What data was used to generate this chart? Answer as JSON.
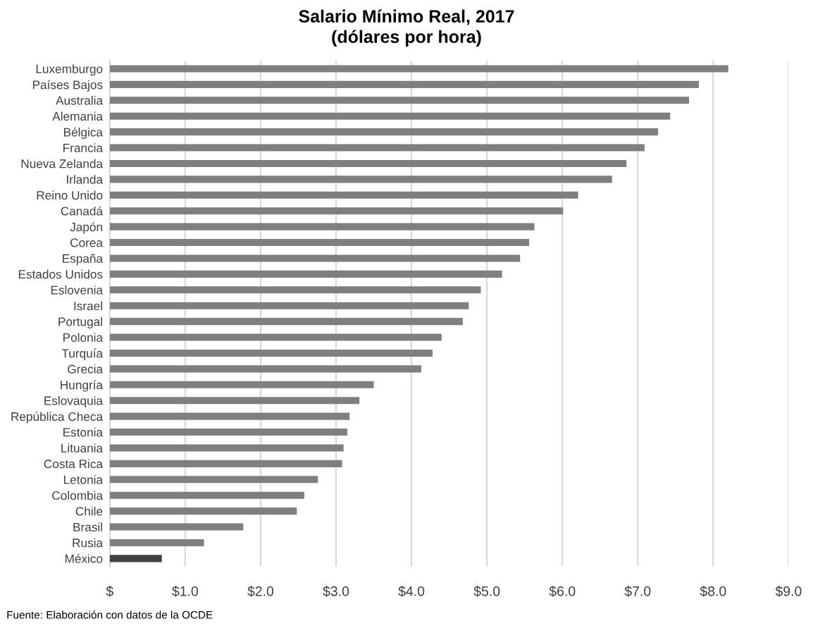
{
  "chart_data": {
    "type": "bar",
    "orientation": "horizontal",
    "title": "Salario Mínimo Real, 2017\n(dólares por hora)",
    "categories": [
      "Luxemburgo",
      "Países Bajos",
      "Australia",
      "Alemania",
      "Bélgica",
      "Francia",
      "Nueva Zelanda",
      "Irlanda",
      "Reino Unido",
      "Canadá",
      "Japón",
      "Corea",
      "España",
      "Estados Unidos",
      "Eslovenia",
      "Israel",
      "Portugal",
      "Polonia",
      "Turquía",
      "Grecia",
      "Hungría",
      "Eslovaquia",
      "República Checa",
      "Estonia",
      "Lituania",
      "Costa Rica",
      "Letonia",
      "Colombia",
      "Chile",
      "Brasil",
      "Rusia",
      "México"
    ],
    "values": [
      8.2,
      7.81,
      7.68,
      7.43,
      7.27,
      7.09,
      6.85,
      6.66,
      6.21,
      6.01,
      5.63,
      5.56,
      5.44,
      5.2,
      4.92,
      4.76,
      4.68,
      4.4,
      4.28,
      4.13,
      3.5,
      3.31,
      3.18,
      3.15,
      3.1,
      3.08,
      2.76,
      2.58,
      2.48,
      1.77,
      1.25,
      0.69
    ],
    "colors": [
      "#7f7f7f",
      "#7f7f7f",
      "#7f7f7f",
      "#7f7f7f",
      "#7f7f7f",
      "#7f7f7f",
      "#7f7f7f",
      "#7f7f7f",
      "#7f7f7f",
      "#7f7f7f",
      "#7f7f7f",
      "#7f7f7f",
      "#7f7f7f",
      "#7f7f7f",
      "#7f7f7f",
      "#7f7f7f",
      "#7f7f7f",
      "#7f7f7f",
      "#7f7f7f",
      "#7f7f7f",
      "#7f7f7f",
      "#7f7f7f",
      "#7f7f7f",
      "#7f7f7f",
      "#7f7f7f",
      "#7f7f7f",
      "#7f7f7f",
      "#7f7f7f",
      "#7f7f7f",
      "#7f7f7f",
      "#7f7f7f",
      "#404040"
    ],
    "xlim": [
      0,
      9
    ],
    "xticks": [
      {
        "value": 0,
        "label": "$"
      },
      {
        "value": 1,
        "label": "$1.0"
      },
      {
        "value": 2,
        "label": "$2.0"
      },
      {
        "value": 3,
        "label": "$3.0"
      },
      {
        "value": 4,
        "label": "$4.0"
      },
      {
        "value": 5,
        "label": "$5.0"
      },
      {
        "value": 6,
        "label": "$6.0"
      },
      {
        "value": 7,
        "label": "$7.0"
      },
      {
        "value": 8,
        "label": "$8.0"
      },
      {
        "value": 9,
        "label": "$9.0"
      }
    ],
    "grid": "x",
    "legend": false,
    "annotations": [
      "Fuente: Elaboración con datos de la OCDE"
    ]
  }
}
